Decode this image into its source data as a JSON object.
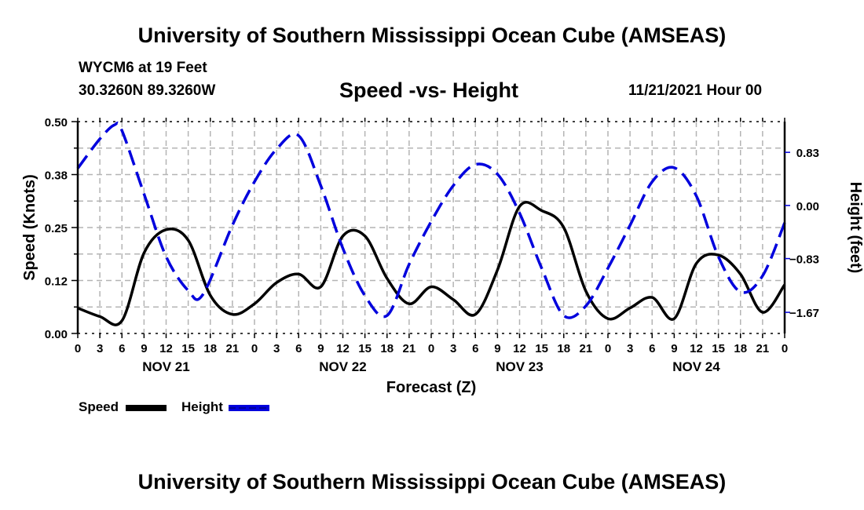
{
  "header": {
    "main_title": "University of Southern Mississippi Ocean Cube (AMSEAS)",
    "station": "WYCM6 at 19 Feet",
    "coords": "30.3260N  89.3260W",
    "subtitle": "Speed -vs- Height",
    "datetime": "11/21/2021 Hour 00"
  },
  "footer": {
    "bottom_title": "University of Southern Mississippi Ocean Cube (AMSEAS)"
  },
  "colors": {
    "speed": "#000000",
    "height": "#0000dd",
    "grid": "#b4b4b4"
  },
  "chart_data": {
    "type": "line",
    "title": "Speed -vs- Height",
    "xlabel": "Forecast (Z)",
    "ylabel": "Speed (Knots)",
    "y2label": "Height (feet)",
    "xlim": [
      0,
      96
    ],
    "ylim": [
      0,
      0.5
    ],
    "y2lim": [
      -2.0,
      1.31
    ],
    "grid": true,
    "legend_position": "bottom-left",
    "x_tick_labels": [
      "0",
      "3",
      "6",
      "9",
      "12",
      "15",
      "18",
      "21",
      "0",
      "3",
      "6",
      "9",
      "12",
      "15",
      "18",
      "21",
      "0",
      "3",
      "6",
      "9",
      "12",
      "15",
      "18",
      "21",
      "0",
      "3",
      "6",
      "9",
      "12",
      "15",
      "18",
      "21",
      "0"
    ],
    "day_labels": [
      {
        "label": "NOV 21",
        "hour": 12
      },
      {
        "label": "NOV 22",
        "hour": 36
      },
      {
        "label": "NOV 23",
        "hour": 60
      },
      {
        "label": "NOV 24",
        "hour": 84
      }
    ],
    "y_ticks": [
      "0.00",
      "0.12",
      "0.25",
      "0.38",
      "0.50"
    ],
    "y_tick_values": [
      0,
      0.125,
      0.25,
      0.375,
      0.5
    ],
    "y2_ticks": [
      "0.83",
      "0.00",
      "−0.83",
      "−1.67"
    ],
    "y2_tick_values": [
      0.83,
      0.0,
      -0.83,
      -1.67
    ],
    "series": [
      {
        "name": "Speed",
        "axis": "left",
        "style": "solid",
        "x": [
          0,
          3,
          6,
          9,
          12,
          15,
          18,
          21,
          24,
          27,
          30,
          33,
          36,
          39,
          42,
          45,
          48,
          51,
          54,
          57,
          60,
          63,
          66,
          69,
          72,
          75,
          78,
          81,
          84,
          87,
          90,
          93,
          96
        ],
        "values": [
          0.06,
          0.04,
          0.03,
          0.19,
          0.245,
          0.22,
          0.09,
          0.045,
          0.07,
          0.12,
          0.14,
          0.11,
          0.23,
          0.23,
          0.13,
          0.07,
          0.11,
          0.08,
          0.045,
          0.15,
          0.3,
          0.29,
          0.25,
          0.1,
          0.035,
          0.06,
          0.085,
          0.035,
          0.165,
          0.185,
          0.14,
          0.05,
          0.115
        ]
      },
      {
        "name": "Height",
        "axis": "right",
        "style": "dashed",
        "x": [
          0,
          3,
          5,
          6,
          9,
          12,
          15,
          17,
          21,
          24,
          27,
          30,
          33,
          36,
          39,
          42,
          45,
          48,
          51,
          54,
          57,
          60,
          63,
          66,
          69,
          72,
          75,
          78,
          81,
          84,
          87,
          90,
          93,
          96
        ],
        "values": [
          0.58,
          1.04,
          1.26,
          1.17,
          0.18,
          -0.8,
          -1.33,
          -1.39,
          -0.31,
          0.37,
          0.88,
          1.09,
          0.31,
          -0.67,
          -1.41,
          -1.72,
          -0.92,
          -0.25,
          0.31,
          0.64,
          0.49,
          -0.12,
          -0.98,
          -1.72,
          -1.57,
          -0.98,
          -0.31,
          0.37,
          0.59,
          0.15,
          -0.8,
          -1.35,
          -1.1,
          -0.27
        ]
      }
    ]
  }
}
